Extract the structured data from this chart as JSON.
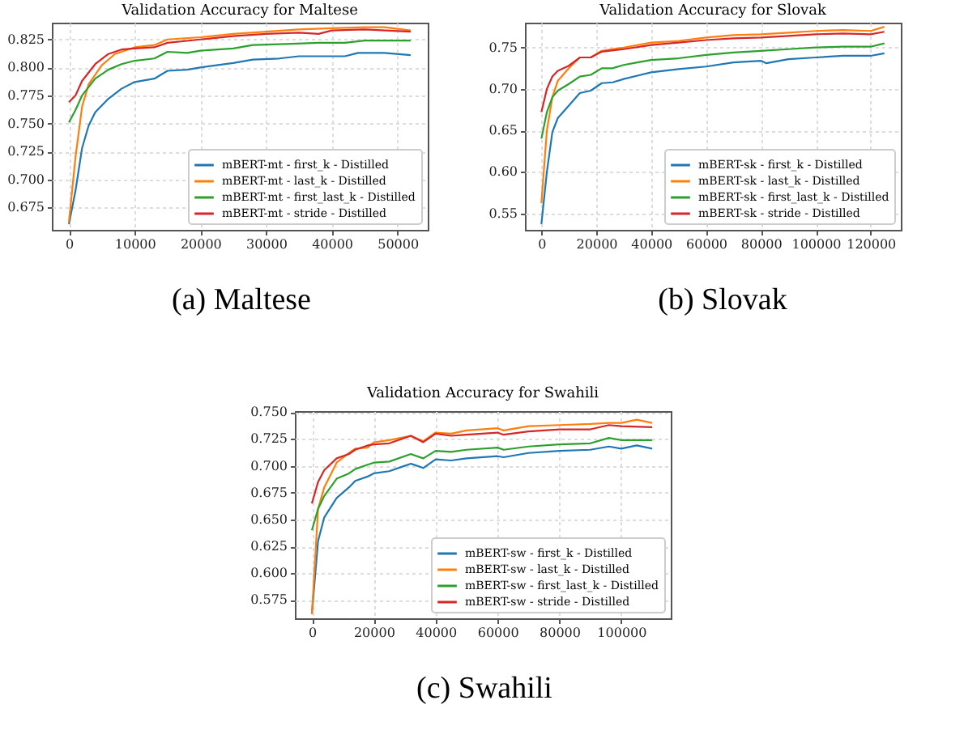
{
  "chart_data": [
    {
      "type": "line",
      "title": "Validation Accuracy for Maltese",
      "annotations": [
        "(a) Maltese"
      ],
      "xlim": [
        -2600,
        54600
      ],
      "ylim": [
        0.655,
        0.84
      ],
      "xticks": [
        0,
        10000,
        20000,
        30000,
        40000,
        50000
      ],
      "yticks": [
        0.675,
        {
          "value": 0.7,
          "label": "0.700"
        },
        0.725,
        {
          "value": 0.75,
          "label": "0.750"
        },
        0.775,
        {
          "value": 0.8,
          "label": "0.800"
        },
        0.825
      ],
      "grid": true,
      "legend": "bottom right",
      "line_style": "solid",
      "series": [
        {
          "name": "mBERT-mt - first_k - Distilled",
          "color": "#1f77b4",
          "x": [
            0,
            1000,
            2000,
            3000,
            4000,
            6000,
            8000,
            10000,
            13000,
            15000,
            18000,
            20000,
            25000,
            28000,
            32000,
            35000,
            40000,
            42000,
            44000,
            48000,
            52000
          ],
          "values": [
            0.66,
            0.69,
            0.728,
            0.748,
            0.76,
            0.772,
            0.781,
            0.787,
            0.79,
            0.797,
            0.798,
            0.8,
            0.804,
            0.807,
            0.808,
            0.81,
            0.81,
            0.81,
            0.813,
            0.813,
            0.811
          ]
        },
        {
          "name": "mBERT-mt - last_k - Distilled",
          "color": "#ff7f0e",
          "x": [
            0,
            1000,
            2000,
            3000,
            5000,
            7000,
            10000,
            13000,
            15000,
            20000,
            25000,
            30000,
            35000,
            40000,
            45000,
            48000,
            52000
          ],
          "values": [
            0.662,
            0.72,
            0.765,
            0.785,
            0.802,
            0.812,
            0.818,
            0.82,
            0.825,
            0.827,
            0.83,
            0.832,
            0.834,
            0.835,
            0.836,
            0.836,
            0.833
          ]
        },
        {
          "name": "mBERT-mt - first_last_k - Distilled",
          "color": "#2ca02c",
          "x": [
            0,
            1000,
            2000,
            4000,
            6000,
            8000,
            10000,
            13000,
            15000,
            18000,
            20000,
            25000,
            28000,
            33000,
            38000,
            42000,
            45000,
            52000
          ],
          "values": [
            0.751,
            0.762,
            0.775,
            0.79,
            0.798,
            0.803,
            0.806,
            0.808,
            0.814,
            0.813,
            0.815,
            0.817,
            0.82,
            0.821,
            0.822,
            0.822,
            0.824,
            0.824
          ]
        },
        {
          "name": "mBERT-mt - stride - Distilled",
          "color": "#d62728",
          "x": [
            0,
            1000,
            2000,
            4000,
            6000,
            8000,
            10000,
            13000,
            15000,
            20000,
            25000,
            30000,
            35000,
            38000,
            40000,
            45000,
            52000
          ],
          "values": [
            0.769,
            0.775,
            0.788,
            0.803,
            0.812,
            0.816,
            0.817,
            0.818,
            0.822,
            0.825,
            0.828,
            0.83,
            0.831,
            0.83,
            0.833,
            0.834,
            0.832
          ]
        }
      ]
    },
    {
      "type": "line",
      "title": "Validation Accuracy for Slovak",
      "annotations": [
        "(b) Slovak"
      ],
      "xlim": [
        -6000,
        131000
      ],
      "ylim": [
        0.53,
        0.78
      ],
      "xticks": [
        0,
        20000,
        40000,
        60000,
        80000,
        100000,
        120000
      ],
      "yticks": [
        0.55,
        {
          "value": 0.6,
          "label": "0.60"
        },
        0.65,
        {
          "value": 0.7,
          "label": "0.70"
        },
        0.75
      ],
      "grid": true,
      "legend": "bottom right",
      "line_style": "solid",
      "series": [
        {
          "name": "mBERT-sk - first_k - Distilled",
          "color": "#1f77b4",
          "x": [
            0,
            2000,
            4000,
            6000,
            10000,
            14000,
            18000,
            22000,
            26000,
            30000,
            35000,
            40000,
            50000,
            60000,
            70000,
            80000,
            82000,
            90000,
            100000,
            110000,
            120000,
            125000
          ],
          "values": [
            0.537,
            0.6,
            0.648,
            0.665,
            0.68,
            0.695,
            0.698,
            0.707,
            0.708,
            0.712,
            0.716,
            0.72,
            0.724,
            0.727,
            0.732,
            0.734,
            0.731,
            0.736,
            0.738,
            0.74,
            0.74,
            0.743
          ]
        },
        {
          "name": "mBERT-sk - last_k - Distilled",
          "color": "#ff7f0e",
          "x": [
            0,
            2000,
            4000,
            6000,
            10000,
            14000,
            18000,
            22000,
            30000,
            40000,
            50000,
            60000,
            70000,
            80000,
            90000,
            100000,
            110000,
            120000,
            125000
          ],
          "values": [
            0.562,
            0.65,
            0.69,
            0.71,
            0.725,
            0.738,
            0.738,
            0.746,
            0.75,
            0.756,
            0.758,
            0.762,
            0.765,
            0.766,
            0.768,
            0.77,
            0.771,
            0.77,
            0.775
          ]
        },
        {
          "name": "mBERT-sk - first_last_k - Distilled",
          "color": "#2ca02c",
          "x": [
            0,
            2000,
            4000,
            6000,
            10000,
            14000,
            18000,
            22000,
            26000,
            30000,
            35000,
            40000,
            50000,
            60000,
            70000,
            80000,
            90000,
            100000,
            110000,
            120000,
            125000
          ],
          "values": [
            0.64,
            0.672,
            0.69,
            0.698,
            0.706,
            0.715,
            0.717,
            0.725,
            0.725,
            0.729,
            0.732,
            0.735,
            0.737,
            0.741,
            0.744,
            0.746,
            0.748,
            0.75,
            0.751,
            0.751,
            0.755
          ]
        },
        {
          "name": "mBERT-sk - stride - Distilled",
          "color": "#d62728",
          "x": [
            0,
            2000,
            4000,
            6000,
            10000,
            14000,
            18000,
            22000,
            30000,
            40000,
            50000,
            60000,
            70000,
            80000,
            90000,
            100000,
            110000,
            120000,
            125000
          ],
          "values": [
            0.672,
            0.7,
            0.715,
            0.722,
            0.728,
            0.738,
            0.738,
            0.745,
            0.748,
            0.753,
            0.756,
            0.759,
            0.761,
            0.762,
            0.764,
            0.766,
            0.767,
            0.766,
            0.769
          ]
        }
      ]
    },
    {
      "type": "line",
      "title": "Validation Accuracy for Swahili",
      "annotations": [
        "(c) Swahili"
      ],
      "xlim": [
        -5500,
        116000
      ],
      "ylim": [
        0.558,
        0.751
      ],
      "xticks": [
        0,
        20000,
        40000,
        60000,
        80000,
        100000
      ],
      "yticks": [
        0.575,
        {
          "value": 0.6,
          "label": "0.600"
        },
        0.625,
        {
          "value": 0.65,
          "label": "0.650"
        },
        0.675,
        {
          "value": 0.7,
          "label": "0.700"
        },
        0.725,
        {
          "value": 0.75,
          "label": "0.750"
        }
      ],
      "grid": true,
      "legend": "bottom right",
      "line_style": "solid",
      "series": [
        {
          "name": "mBERT-sw - first_k - Distilled",
          "color": "#1f77b4",
          "x": [
            0,
            2000,
            4000,
            8000,
            12000,
            14000,
            18000,
            20000,
            25000,
            30000,
            32000,
            36000,
            40000,
            45000,
            50000,
            60000,
            62000,
            70000,
            80000,
            90000,
            96000,
            100000,
            105000,
            110000
          ],
          "values": [
            0.562,
            0.63,
            0.652,
            0.67,
            0.68,
            0.686,
            0.69,
            0.693,
            0.695,
            0.7,
            0.702,
            0.698,
            0.706,
            0.705,
            0.707,
            0.709,
            0.708,
            0.712,
            0.714,
            0.715,
            0.718,
            0.716,
            0.719,
            0.716
          ]
        },
        {
          "name": "mBERT-sw - last_k - Distilled",
          "color": "#ff7f0e",
          "x": [
            0,
            2000,
            4000,
            8000,
            12000,
            14000,
            18000,
            20000,
            25000,
            32000,
            36000,
            40000,
            45000,
            50000,
            60000,
            62000,
            70000,
            80000,
            90000,
            96000,
            100000,
            105000,
            110000
          ],
          "values": [
            0.562,
            0.66,
            0.68,
            0.703,
            0.712,
            0.716,
            0.717,
            0.722,
            0.724,
            0.728,
            0.723,
            0.731,
            0.73,
            0.733,
            0.735,
            0.733,
            0.737,
            0.738,
            0.739,
            0.74,
            0.74,
            0.743,
            0.74
          ]
        },
        {
          "name": "mBERT-sw - first_last_k - Distilled",
          "color": "#2ca02c",
          "x": [
            0,
            2000,
            4000,
            8000,
            12000,
            14000,
            18000,
            20000,
            25000,
            32000,
            36000,
            40000,
            45000,
            50000,
            60000,
            62000,
            70000,
            80000,
            90000,
            96000,
            100000,
            110000
          ],
          "values": [
            0.64,
            0.66,
            0.672,
            0.688,
            0.693,
            0.697,
            0.701,
            0.703,
            0.704,
            0.711,
            0.707,
            0.714,
            0.713,
            0.715,
            0.717,
            0.715,
            0.718,
            0.72,
            0.721,
            0.726,
            0.724,
            0.724
          ]
        },
        {
          "name": "mBERT-sw - stride - Distilled",
          "color": "#d62728",
          "x": [
            0,
            2000,
            4000,
            8000,
            12000,
            14000,
            18000,
            20000,
            25000,
            32000,
            36000,
            40000,
            45000,
            50000,
            60000,
            62000,
            70000,
            80000,
            90000,
            96000,
            100000,
            110000
          ],
          "values": [
            0.665,
            0.685,
            0.696,
            0.707,
            0.711,
            0.715,
            0.719,
            0.72,
            0.721,
            0.728,
            0.722,
            0.73,
            0.728,
            0.729,
            0.731,
            0.729,
            0.732,
            0.734,
            0.734,
            0.738,
            0.737,
            0.736
          ]
        }
      ]
    }
  ]
}
